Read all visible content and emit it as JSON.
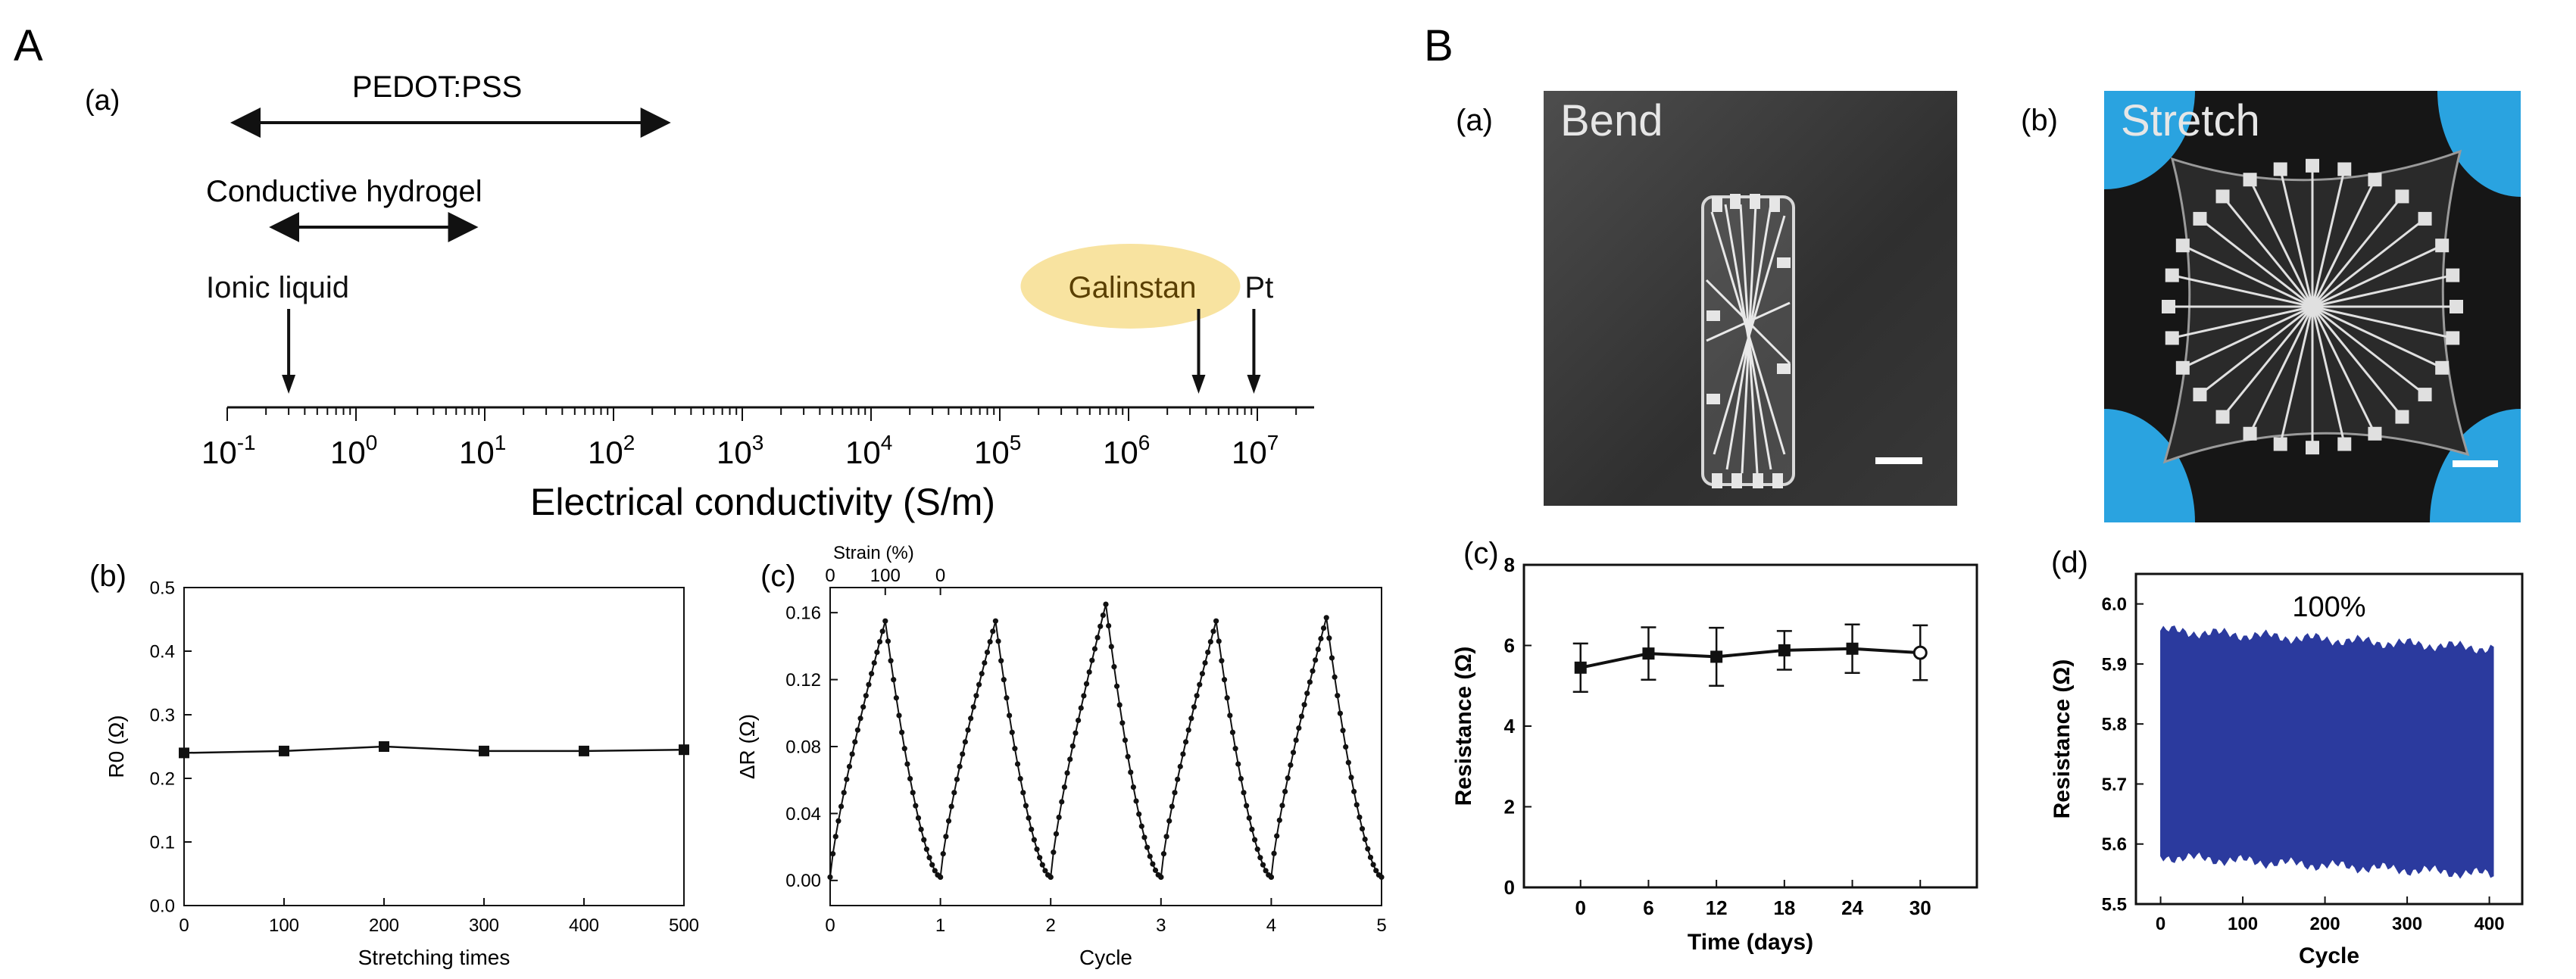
{
  "panels": {
    "A": "A",
    "B": "B"
  },
  "conductivity_scale": {
    "sub_label": "(a)",
    "axis_label": "Electrical conductivity (S/m)",
    "tick_labels": [
      "10-1",
      "100",
      "101",
      "102",
      "103",
      "104",
      "105",
      "106",
      "107"
    ],
    "ranges": [
      {
        "name": "PEDOT:PSS",
        "from": 0.1,
        "to": 250
      },
      {
        "name": "Conductive hydrogel",
        "from": 0.2,
        "to": 8
      }
    ],
    "points": [
      {
        "name": "Ionic liquid",
        "value": 0.3
      },
      {
        "name": "Galinstan",
        "value": 3500000,
        "highlight": "#f8e3a0"
      },
      {
        "name": "Pt",
        "value": 9400000
      }
    ]
  },
  "chart_data": [
    {
      "id": "Ab",
      "type": "line",
      "sub_label": "(b)",
      "xlabel": "Stretching times",
      "ylabel": "R0 (Ω)",
      "xlim": [
        0,
        500
      ],
      "ylim": [
        0,
        0.5
      ],
      "xticks": [
        "0",
        "100",
        "200",
        "300",
        "400",
        "500"
      ],
      "yticks": [
        "0.0",
        "0.1",
        "0.2",
        "0.3",
        "0.4",
        "0.5"
      ],
      "x": [
        0,
        100,
        200,
        300,
        400,
        500
      ],
      "y": [
        0.24,
        0.243,
        0.25,
        0.243,
        0.243,
        0.245
      ]
    },
    {
      "id": "Ac",
      "type": "line",
      "sub_label": "(c)",
      "xlabel": "Cycle",
      "ylabel": "ΔR (Ω)",
      "top_axis_label": "Strain (%)",
      "top_ticks": [
        "0",
        "100",
        "0"
      ],
      "xlim": [
        0,
        5
      ],
      "ylim": [
        -0.015,
        0.175
      ],
      "xticks": [
        "0",
        "1",
        "2",
        "3",
        "4",
        "5"
      ],
      "yticks": [
        "0.00",
        "0.04",
        "0.08",
        "0.12",
        "0.16"
      ],
      "cycles": [
        {
          "start": 0,
          "peak": 0.155
        },
        {
          "start": 1,
          "peak": 0.155
        },
        {
          "start": 2,
          "peak": 0.165
        },
        {
          "start": 3,
          "peak": 0.155
        },
        {
          "start": 4,
          "peak": 0.157
        }
      ],
      "min_value": 0.002
    },
    {
      "id": "Bc",
      "type": "line",
      "sub_label": "(c)",
      "xlabel": "Time (days)",
      "ylabel": "Resistance (Ω)",
      "xlim": [
        -5,
        35
      ],
      "ylim": [
        0,
        8
      ],
      "xticks": [
        "0",
        "6",
        "12",
        "18",
        "24",
        "30"
      ],
      "yticks": [
        "0",
        "2",
        "4",
        "6",
        "8"
      ],
      "x": [
        0,
        6,
        12,
        18,
        24,
        30
      ],
      "y": [
        5.45,
        5.8,
        5.72,
        5.88,
        5.92,
        5.82
      ],
      "error": [
        0.6,
        0.65,
        0.72,
        0.48,
        0.6,
        0.68
      ]
    },
    {
      "id": "Bd",
      "type": "area",
      "sub_label": "(d)",
      "xlabel": "Cycle",
      "ylabel": "Resistance (Ω)",
      "annotation": "100%",
      "xlim": [
        -30,
        440
      ],
      "ylim": [
        5.5,
        6.05
      ],
      "xticks": [
        "0",
        "100",
        "200",
        "300",
        "400"
      ],
      "yticks": [
        "5.5",
        "5.6",
        "5.7",
        "5.8",
        "5.9",
        "6.0"
      ],
      "x_range": [
        0,
        405
      ],
      "upper_start": 5.955,
      "upper_end": 5.925,
      "lower_start": 5.58,
      "lower_end": 5.55,
      "fill": "#2b3a9e"
    }
  ],
  "photos": [
    {
      "sub_label": "(a)",
      "label": "Bend"
    },
    {
      "sub_label": "(b)",
      "label": "Stretch"
    }
  ]
}
